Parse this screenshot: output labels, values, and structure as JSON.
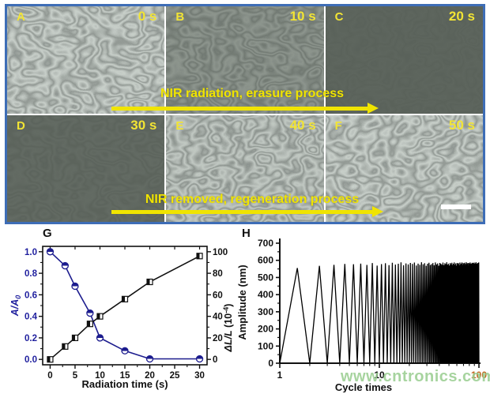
{
  "montage": {
    "panels": [
      {
        "label": "A",
        "time": "0 s",
        "pattern": 1.0
      },
      {
        "label": "B",
        "time": "10 s",
        "pattern": 0.5
      },
      {
        "label": "C",
        "time": "20 s",
        "pattern": 0.05
      },
      {
        "label": "D",
        "time": "30 s",
        "pattern": 0.13
      },
      {
        "label": "E",
        "time": "40 s",
        "pattern": 0.95
      },
      {
        "label": "F",
        "time": "50 s",
        "pattern": 1.0
      }
    ],
    "top_arrow_text": "NIR radiation, erasure process",
    "bottom_arrow_text": "NIR removed, regeneration process",
    "colors": {
      "border": "#3e6db6",
      "panel_label": "#f2e434",
      "arrow": "#f0e400",
      "pattern_dark": "#47514a",
      "pattern_light": "#93a095"
    }
  },
  "watermark": "www.cntronics.com",
  "chart_data": [
    {
      "id": "G",
      "type": "line",
      "panel_label": "G",
      "xlabel": "Radiation time (s)",
      "x_ticks": [
        0,
        5,
        10,
        15,
        20,
        25,
        30
      ],
      "xlim": [
        -1.5,
        31.5
      ],
      "x_minor_step": 2.5,
      "left_axis": {
        "label": "A/A0",
        "label_parts": {
          "main": "A/A",
          "sub": "0"
        },
        "ticks": [
          0.0,
          0.2,
          0.4,
          0.6,
          0.8,
          1.0
        ],
        "lim": [
          -0.05,
          1.05
        ],
        "color": "#1f1f9e"
      },
      "right_axis": {
        "label": "dL/L (10^-4)",
        "label_parts": {
          "italic": "ΔL/L",
          "pre": " (10",
          "sup": "-4",
          "post": ")"
        },
        "ticks": [
          0,
          20,
          40,
          60,
          80,
          100
        ],
        "lim": [
          -5,
          105
        ],
        "color": "#111111"
      },
      "series": [
        {
          "name": "A/A0",
          "axis": "left",
          "color": "#1c1c8e",
          "marker": "circle-half",
          "x": [
            0,
            3,
            5,
            8,
            10,
            15,
            20,
            30
          ],
          "y": [
            1.0,
            0.87,
            0.68,
            0.43,
            0.2,
            0.08,
            0.005,
            0.005
          ]
        },
        {
          "name": "dL/L",
          "axis": "right",
          "color": "#111111",
          "marker": "square-half",
          "x": [
            0,
            3,
            5,
            8,
            10,
            15,
            20,
            30
          ],
          "y": [
            0,
            12,
            20,
            33,
            40,
            56,
            72,
            96
          ]
        }
      ],
      "grid": false,
      "legend": false
    },
    {
      "id": "H",
      "type": "line",
      "panel_label": "H",
      "xlabel": "Cycle times",
      "ylabel": "Amplitude (nm)",
      "x_scale": "log",
      "xlim": [
        1,
        100
      ],
      "x_major_ticks": [
        1,
        10,
        100
      ],
      "x_tick_colors": [
        "#111111",
        "#111111",
        "#c2661e"
      ],
      "y_ticks": [
        0,
        100,
        200,
        300,
        400,
        500,
        600,
        700
      ],
      "ylim": [
        0,
        700
      ],
      "y_minor_step": 50,
      "waveform": {
        "baseline": 0,
        "peaks": [
          555,
          568,
          574,
          579,
          577,
          581,
          573,
          584,
          569,
          578,
          583,
          572,
          586,
          575,
          580,
          588,
          571,
          582,
          576,
          585,
          579,
          587,
          570,
          581,
          574,
          589,
          577,
          583,
          568,
          580,
          586,
          573,
          578,
          584,
          571,
          588,
          576,
          582,
          569,
          585,
          580,
          574,
          587,
          572,
          583,
          578,
          589,
          575,
          581,
          570,
          584,
          577,
          586,
          573,
          580,
          588,
          574,
          582,
          569,
          585,
          578,
          583,
          571,
          587,
          576,
          581,
          588,
          573,
          584,
          579,
          586,
          572,
          580,
          589,
          575,
          583,
          570,
          585,
          577,
          582,
          588,
          574,
          581,
          569,
          586,
          578,
          584,
          571,
          587,
          580,
          575,
          583,
          589,
          572,
          581,
          577,
          585,
          573,
          588
        ]
      },
      "grid": false,
      "legend": false
    }
  ]
}
